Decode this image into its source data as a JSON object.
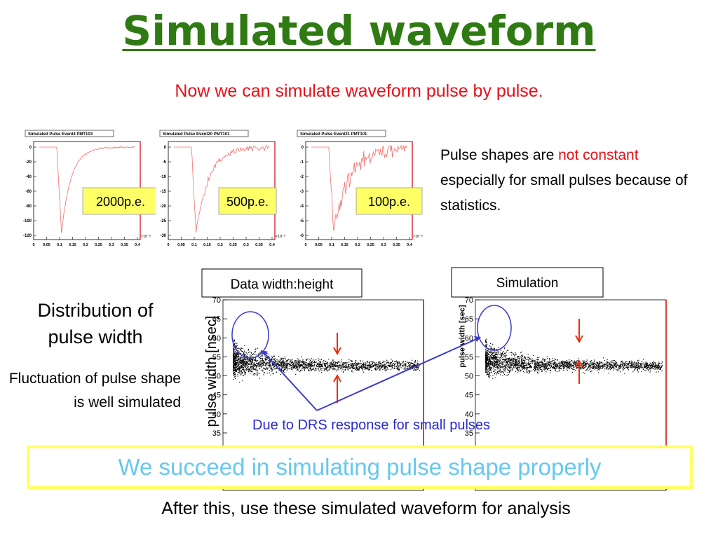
{
  "title": "Simulated waveform",
  "subtitle": "Now we can simulate waveform pulse by pulse.",
  "waveforms": [
    {
      "title": "Simulated Pulse Event4 PMT103",
      "label": "2000p.e.",
      "yticks": [
        0,
        -20,
        -40,
        -60,
        -80,
        -100,
        -120
      ]
    },
    {
      "title": "Simulated Pulse Event20 PMT101",
      "label": "500p.e.",
      "yticks": [
        0,
        -5,
        -10,
        -15,
        -20,
        -25,
        -30
      ]
    },
    {
      "title": "Simulated Pulse Event21 PMT101",
      "label": "100p.e.",
      "yticks": [
        0,
        -1,
        -2,
        -3,
        -4,
        -5,
        -6
      ]
    }
  ],
  "waveform_xticks": [
    0,
    0.05,
    0.1,
    0.15,
    0.2,
    0.25,
    0.3,
    0.35,
    0.4
  ],
  "waveform_xscale": "×10⁻⁶",
  "note": {
    "before": "Pulse shapes are ",
    "highlight": "not constant",
    "after": " especially for small pulses because of statistics."
  },
  "left": {
    "heading": "Distribution of pulse width",
    "sub": "Fluctuation of pulse shape is well simulated"
  },
  "plots": [
    {
      "label": "Data   width:height",
      "ylabel": "pulse width [nsec]"
    },
    {
      "label": "Simulation",
      "ylabel": "pulse width [sec]"
    }
  ],
  "plot_yticks": [
    35,
    40,
    45,
    50,
    55,
    60,
    65,
    70
  ],
  "annotation": "Due to DRS response for small pulses",
  "banner": "We succeed in simulating pulse shape properly",
  "footer": "After this, use these simulated waveform for analysis"
}
